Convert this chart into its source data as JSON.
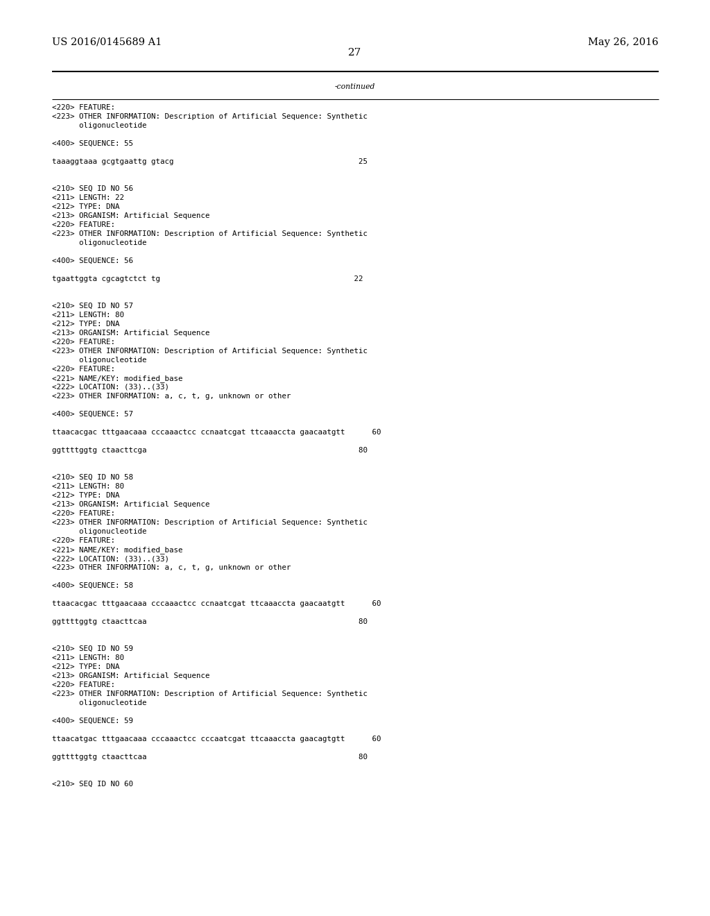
{
  "header_left": "US 2016/0145689 A1",
  "header_right": "May 26, 2016",
  "page_number": "27",
  "continued_label": "-continued",
  "background_color": "#ffffff",
  "text_color": "#000000",
  "font_size_header": 10.5,
  "font_size_body": 7.8,
  "font_size_page": 11,
  "lines": [
    "<220> FEATURE:",
    "<223> OTHER INFORMATION: Description of Artificial Sequence: Synthetic",
    "      oligonucleotide",
    "",
    "<400> SEQUENCE: 55",
    "",
    "taaaggtaaa gcgtgaattg gtacg                                         25",
    "",
    "",
    "<210> SEQ ID NO 56",
    "<211> LENGTH: 22",
    "<212> TYPE: DNA",
    "<213> ORGANISM: Artificial Sequence",
    "<220> FEATURE:",
    "<223> OTHER INFORMATION: Description of Artificial Sequence: Synthetic",
    "      oligonucleotide",
    "",
    "<400> SEQUENCE: 56",
    "",
    "tgaattggta cgcagtctct tg                                           22",
    "",
    "",
    "<210> SEQ ID NO 57",
    "<211> LENGTH: 80",
    "<212> TYPE: DNA",
    "<213> ORGANISM: Artificial Sequence",
    "<220> FEATURE:",
    "<223> OTHER INFORMATION: Description of Artificial Sequence: Synthetic",
    "      oligonucleotide",
    "<220> FEATURE:",
    "<221> NAME/KEY: modified_base",
    "<222> LOCATION: (33)..(33)",
    "<223> OTHER INFORMATION: a, c, t, g, unknown or other",
    "",
    "<400> SEQUENCE: 57",
    "",
    "ttaacacgac tttgaacaaa cccaaactcc ccnaatcgat ttcaaaccta gaacaatgtt      60",
    "",
    "ggttttggtg ctaacttcga                                               80",
    "",
    "",
    "<210> SEQ ID NO 58",
    "<211> LENGTH: 80",
    "<212> TYPE: DNA",
    "<213> ORGANISM: Artificial Sequence",
    "<220> FEATURE:",
    "<223> OTHER INFORMATION: Description of Artificial Sequence: Synthetic",
    "      oligonucleotide",
    "<220> FEATURE:",
    "<221> NAME/KEY: modified_base",
    "<222> LOCATION: (33)..(33)",
    "<223> OTHER INFORMATION: a, c, t, g, unknown or other",
    "",
    "<400> SEQUENCE: 58",
    "",
    "ttaacacgac tttgaacaaa cccaaactcc ccnaatcgat ttcaaaccta gaacaatgtt      60",
    "",
    "ggttttggtg ctaacttcaa                                               80",
    "",
    "",
    "<210> SEQ ID NO 59",
    "<211> LENGTH: 80",
    "<212> TYPE: DNA",
    "<213> ORGANISM: Artificial Sequence",
    "<220> FEATURE:",
    "<223> OTHER INFORMATION: Description of Artificial Sequence: Synthetic",
    "      oligonucleotide",
    "",
    "<400> SEQUENCE: 59",
    "",
    "ttaacatgac tttgaacaaa cccaaactcc cccaatcgat ttcaaaccta gaacagtgtt      60",
    "",
    "ggttttggtg ctaacttcaa                                               80",
    "",
    "",
    "<210> SEQ ID NO 60"
  ]
}
